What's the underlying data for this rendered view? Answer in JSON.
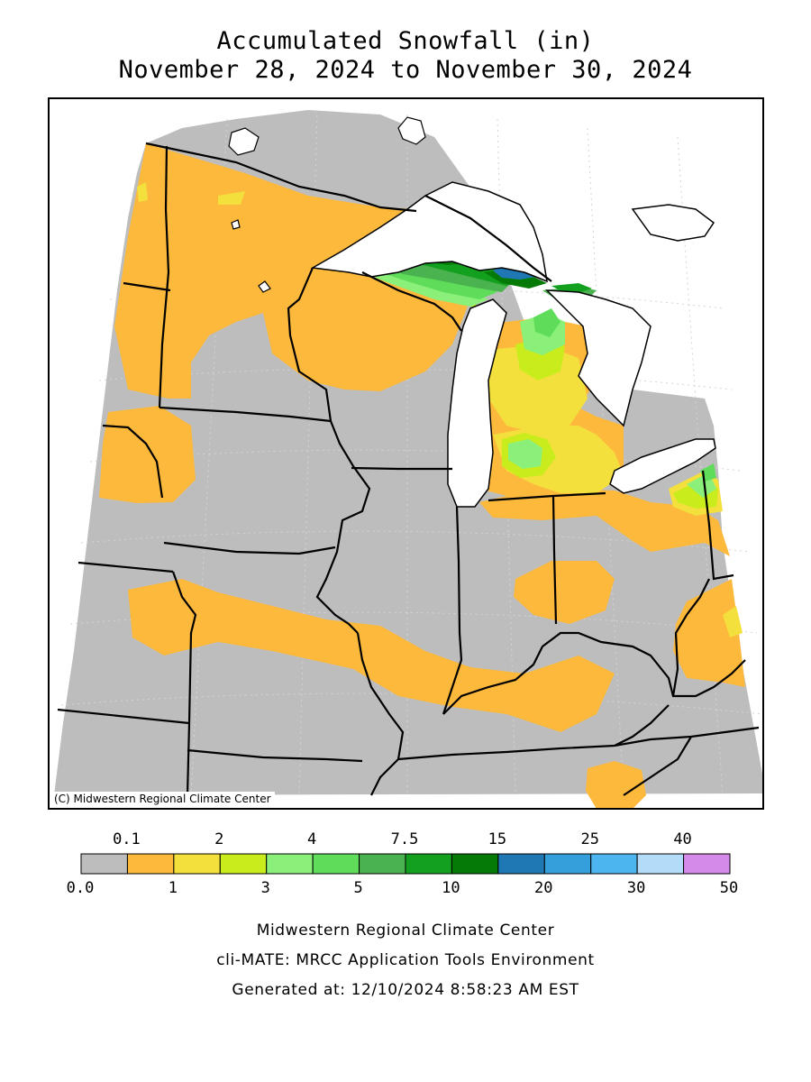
{
  "title": {
    "line1": "Accumulated Snowfall (in)",
    "line2": "November 28, 2024 to November 30, 2024"
  },
  "map": {
    "copyright": "(C) Midwestern Regional Climate Center",
    "colors": {
      "no_snow": "#bdbdbd",
      "lake": "#ffffff",
      "boundary": "#000000",
      "graticule": "#d4d4d4"
    }
  },
  "legend": {
    "top_labels": [
      "0.1",
      "2",
      "4",
      "7.5",
      "15",
      "25",
      "40"
    ],
    "bottom_labels": [
      "0.0",
      "1",
      "3",
      "5",
      "10",
      "20",
      "30",
      "50"
    ],
    "bins": [
      {
        "range": "0.0-0.1",
        "color": "#bdbdbd"
      },
      {
        "range": "0.1-1",
        "color": "#fdb93c"
      },
      {
        "range": "1-2",
        "color": "#f4e03c"
      },
      {
        "range": "2-3",
        "color": "#c8ec1c"
      },
      {
        "range": "3-4",
        "color": "#8af07a"
      },
      {
        "range": "4-5",
        "color": "#5edc5a"
      },
      {
        "range": "5-7.5",
        "color": "#4ab24e"
      },
      {
        "range": "7.5-10",
        "color": "#13a01e"
      },
      {
        "range": "10-15",
        "color": "#067a06"
      },
      {
        "range": "15-20",
        "color": "#1f78b4"
      },
      {
        "range": "20-25",
        "color": "#33a0dc"
      },
      {
        "range": "25-30",
        "color": "#4cb4ee"
      },
      {
        "range": "30-40",
        "color": "#b4dcf8"
      },
      {
        "range": "40-50",
        "color": "#d48ae8"
      }
    ]
  },
  "footer": {
    "org": "Midwestern Regional Climate Center",
    "tool": "cli-MATE: MRCC Application Tools Environment",
    "generated": "Generated at: 12/10/2024 8:58:23 AM EST"
  }
}
